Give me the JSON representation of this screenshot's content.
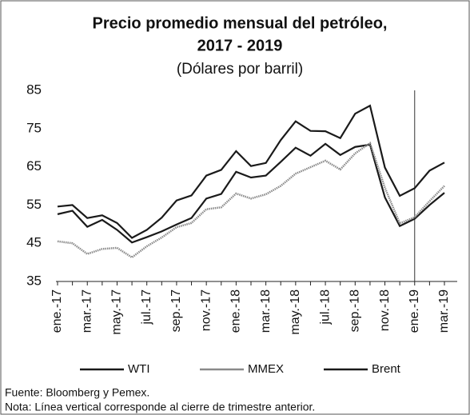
{
  "chart_data": {
    "type": "line",
    "title": "Precio promedio mensual del petróleo,",
    "title_line2": "2017 - 2019",
    "subtitle": "(Dólares por barril)",
    "categories": [
      "ene.-17",
      null,
      "mar.-17",
      null,
      "may.-17",
      null,
      "jul.-17",
      null,
      "sep.-17",
      null,
      "nov.-17",
      null,
      "ene.-18",
      null,
      "mar.-18",
      null,
      "may.-18",
      null,
      "jul.-18",
      null,
      "sep.-18",
      null,
      "nov.-18",
      null,
      "ene.-19",
      null,
      "mar.-19"
    ],
    "series": [
      {
        "name": "WTI",
        "color": "#1a1a1a",
        "values": [
          52.6,
          53.5,
          49.3,
          51.1,
          48.5,
          45.2,
          46.6,
          48.1,
          49.9,
          51.6,
          56.7,
          57.9,
          63.7,
          62.2,
          62.7,
          66.3,
          70.0,
          67.9,
          71.0,
          68.1,
          70.2,
          70.8,
          57.0,
          49.5,
          51.4,
          55.0,
          58.2
        ]
      },
      {
        "name": "MMEX",
        "color": "#8a8a8a",
        "values": [
          45.5,
          45.0,
          42.2,
          43.5,
          43.8,
          41.3,
          44.2,
          46.5,
          49.2,
          50.3,
          53.9,
          54.4,
          58.0,
          56.7,
          57.8,
          60.0,
          63.2,
          64.9,
          66.6,
          64.3,
          68.5,
          71.2,
          59.5,
          50.2,
          51.8,
          56.0,
          60.0
        ]
      },
      {
        "name": "Brent",
        "color": "#1a1a1a",
        "values": [
          54.6,
          55.0,
          51.6,
          52.3,
          50.3,
          46.4,
          48.5,
          51.7,
          56.2,
          57.5,
          62.7,
          64.2,
          69.1,
          65.2,
          66.0,
          72.0,
          76.9,
          74.4,
          74.3,
          72.5,
          78.9,
          81.0,
          64.8,
          57.4,
          59.4,
          64.0,
          66.1
        ]
      }
    ],
    "ylim": [
      35,
      85
    ],
    "yticks": [
      35,
      45,
      55,
      65,
      75,
      85
    ],
    "vline_category_index": 24,
    "legend": "bottom",
    "notes": [
      "Fuente: Bloomberg y Pemex.",
      "Nota: Línea vertical corresponde al cierre de trimestre anterior."
    ]
  }
}
